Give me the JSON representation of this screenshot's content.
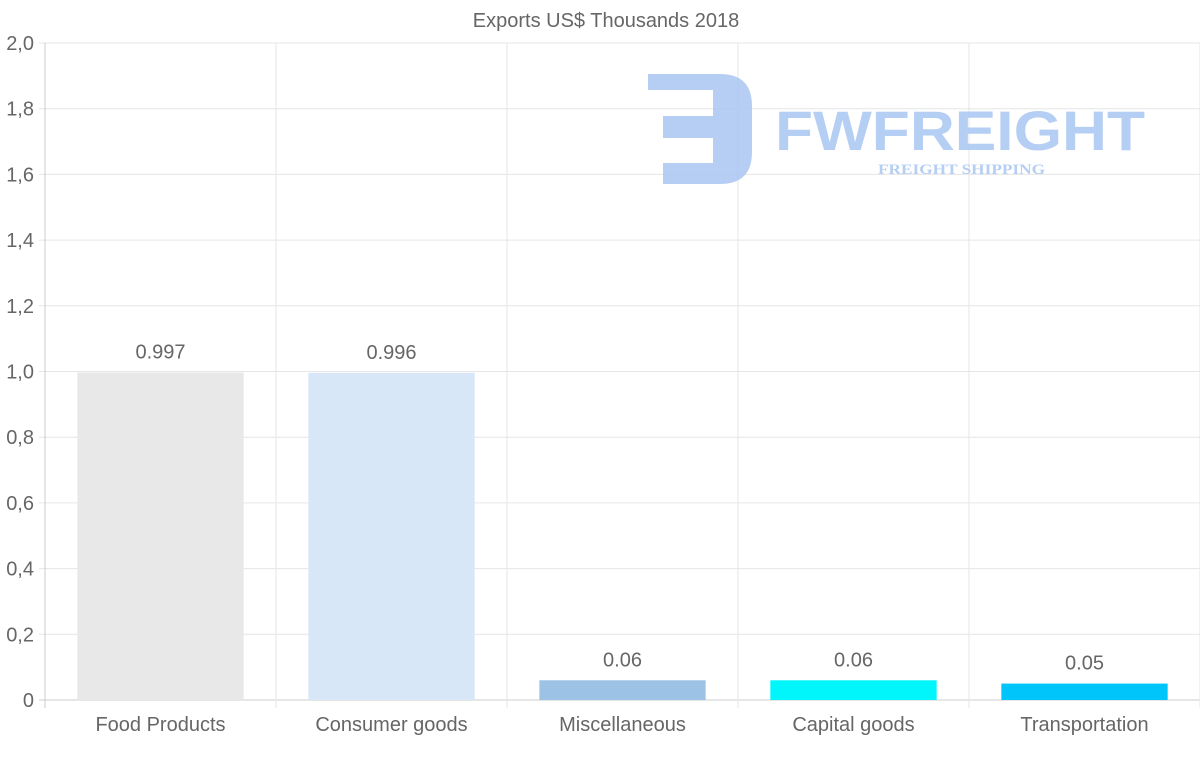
{
  "chart_data": {
    "type": "bar",
    "title": "Exports US$ Thousands 2018",
    "xlabel": "",
    "ylabel": "",
    "categories": [
      "Food Products",
      "Consumer goods",
      "Miscellaneous",
      "Capital goods",
      "Transportation"
    ],
    "values": [
      0.997,
      0.996,
      0.06,
      0.06,
      0.05
    ],
    "value_labels": [
      "0.997",
      "0.996",
      "0.06",
      "0.06",
      "0.05"
    ],
    "colors": [
      "#e8e8e8",
      "#d7e7f8",
      "#9cc3e6",
      "#00f6fa",
      "#00c5fb"
    ],
    "ylim": [
      0,
      2.0
    ],
    "yticks": [
      0,
      0.2,
      0.4,
      0.6,
      0.8,
      1.0,
      1.2,
      1.4,
      1.6,
      1.8,
      2.0
    ],
    "ytick_labels": [
      "0",
      "0,2",
      "0,4",
      "0,6",
      "0,8",
      "1,0",
      "1,2",
      "1,4",
      "1,6",
      "1,8",
      "2,0"
    ],
    "grid": true,
    "legend": "none"
  },
  "watermark": {
    "brand": "FWFREIGHT",
    "tagline": "FREIGHT SHIPPING",
    "color": "#a9c6f2"
  }
}
